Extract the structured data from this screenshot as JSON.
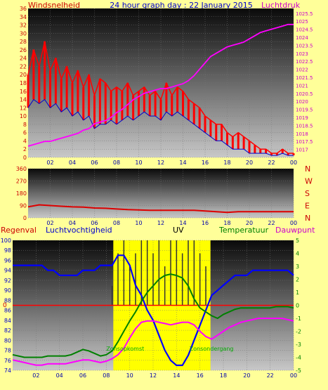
{
  "header": {
    "left_label": "Windsnelheid",
    "title": "24 hour graph day : 22 January 2015",
    "right_label": "Luchtdruk"
  },
  "colors": {
    "background": "#ffff99",
    "wind_gust": "#ff0000",
    "wind_avg": "#0000cc",
    "pressure": "#ff00ff",
    "humidity": "#0000ff",
    "temperature": "#008000",
    "dewpoint": "#ff00ff",
    "uv": "#ffff00",
    "direction": "#dd0000",
    "temp_zero_line": "#ff0000"
  },
  "chart_data": [
    {
      "type": "line",
      "x": [
        0,
        0.5,
        1,
        1.5,
        2,
        2.5,
        3,
        3.5,
        4,
        4.5,
        5,
        5.5,
        6,
        6.5,
        7,
        7.5,
        8,
        8.5,
        9,
        9.5,
        10,
        10.5,
        11,
        11.5,
        12,
        12.5,
        13,
        13.5,
        14,
        14.5,
        15,
        15.5,
        16,
        16.5,
        17,
        17.5,
        18,
        18.5,
        19,
        19.5,
        20,
        20.5,
        21,
        21.5,
        22,
        22.5,
        23,
        23.5,
        24
      ],
      "x_tick_labels": [
        "02",
        "04",
        "06",
        "08",
        "10",
        "12",
        "14",
        "16",
        "18",
        "20",
        "22",
        "00"
      ],
      "xlim": [
        0,
        24
      ],
      "y_left_ticks": [
        "0",
        "2",
        "4",
        "6",
        "8",
        "10",
        "12",
        "14",
        "16",
        "18",
        "20",
        "22",
        "24",
        "26",
        "28",
        "30",
        "32",
        "34",
        "36"
      ],
      "ylim_left": [
        0,
        36
      ],
      "y_right_ticks": [
        "1017",
        "1017.5",
        "1018",
        "1018.5",
        "1019",
        "1019.5",
        "1020",
        "1020.5",
        "1021",
        "1021.5",
        "1022",
        "1022.5",
        "1023",
        "1023.5",
        "1024",
        "1024.5",
        "1025",
        "1025.5"
      ],
      "ylim_right": [
        1016.5,
        1025.8
      ],
      "series": [
        {
          "name": "Windsnelheid",
          "role": "gust",
          "values": [
            20,
            26,
            22,
            28,
            21,
            24,
            19,
            22,
            18,
            21,
            17,
            20,
            15,
            19,
            18,
            16,
            17,
            16,
            18,
            15,
            16,
            17,
            15,
            16,
            14,
            18,
            15,
            17,
            16,
            14,
            13,
            12,
            10,
            9,
            8,
            8,
            6,
            5,
            6,
            5,
            4,
            3,
            2,
            2,
            1,
            1,
            2,
            1,
            1
          ]
        },
        {
          "name": "Windsnelheid",
          "role": "average",
          "values": [
            12,
            14,
            13,
            14,
            12,
            13,
            11,
            12,
            10,
            11,
            9,
            10,
            7,
            8,
            8,
            9,
            8,
            9,
            10,
            9,
            10,
            11,
            10,
            10,
            9,
            11,
            10,
            11,
            10,
            9,
            8,
            7,
            6,
            5,
            4,
            4,
            3,
            2,
            2,
            2,
            1,
            1,
            1,
            1,
            0.5,
            0.5,
            1,
            0.5,
            0.5
          ]
        },
        {
          "name": "Luchtdruk",
          "values": [
            1017.2,
            1017.3,
            1017.4,
            1017.5,
            1017.5,
            1017.6,
            1017.7,
            1017.8,
            1017.9,
            1018,
            1018.2,
            1018.3,
            1018.6,
            1018.7,
            1018.8,
            1019,
            1019.3,
            1019.5,
            1019.8,
            1020.1,
            1020.3,
            1020.5,
            1020.6,
            1020.7,
            1020.8,
            1020.8,
            1020.9,
            1021,
            1021.1,
            1021.3,
            1021.6,
            1022,
            1022.4,
            1022.8,
            1023,
            1023.2,
            1023.4,
            1023.5,
            1023.6,
            1023.7,
            1023.9,
            1024.1,
            1024.3,
            1024.4,
            1024.5,
            1024.6,
            1024.7,
            1024.8,
            1024.8
          ]
        }
      ]
    },
    {
      "type": "line",
      "x": [
        0,
        1,
        2,
        3,
        4,
        5,
        6,
        7,
        8,
        9,
        10,
        11,
        12,
        13,
        14,
        15,
        16,
        17,
        18,
        19,
        20,
        21,
        22,
        23,
        24
      ],
      "x_tick_labels": [
        "02",
        "04",
        "06",
        "08",
        "10",
        "12",
        "14",
        "16",
        "18",
        "20",
        "22",
        "00"
      ],
      "xlim": [
        0,
        24
      ],
      "y_ticks": [
        "0",
        "90",
        "180",
        "270",
        "360"
      ],
      "ylim": [
        0,
        360
      ],
      "direction_labels": [
        "N",
        "W",
        "S",
        "E",
        "N"
      ],
      "series": [
        {
          "name": "Windrichting",
          "values": [
            80,
            95,
            90,
            85,
            80,
            78,
            72,
            70,
            65,
            60,
            58,
            55,
            55,
            55,
            55,
            55,
            50,
            45,
            40,
            45,
            45,
            45,
            45,
            45,
            45
          ]
        }
      ]
    },
    {
      "type": "line",
      "header_labels": {
        "regen": "Regenval",
        "humidity": "Luchtvochtigheid",
        "uv": "UV",
        "temperature": "Temperatuur",
        "dewpoint": "Dauwpunt"
      },
      "x_tick_labels": [
        "02",
        "04",
        "06",
        "08",
        "10",
        "12",
        "14",
        "16",
        "18",
        "20",
        "22",
        "00"
      ],
      "xlim": [
        0,
        24
      ],
      "y_left_ticks": [
        "74",
        "76",
        "78",
        "80",
        "82",
        "84",
        "86",
        "88",
        "90",
        "92",
        "94",
        "96",
        "98",
        "100"
      ],
      "ylim_left": [
        74,
        100
      ],
      "y_right_ticks": [
        "-5",
        "-4",
        "-3",
        "-2",
        "-1",
        "0",
        "1",
        "2",
        "3",
        "4",
        "5"
      ],
      "ylim_right": [
        -5,
        5
      ],
      "regen_zero_label": "0",
      "annotations": {
        "sunrise": "Zonsopkomst",
        "sunset": "Zonsondergang"
      },
      "sun_period": [
        8.6,
        16.9
      ],
      "x": [
        0,
        0.5,
        1,
        1.5,
        2,
        2.5,
        3,
        3.5,
        4,
        4.5,
        5,
        5.5,
        6,
        6.5,
        7,
        7.5,
        8,
        8.5,
        9,
        9.5,
        10,
        10.5,
        11,
        11.5,
        12,
        12.5,
        13,
        13.5,
        14,
        14.5,
        15,
        15.5,
        16,
        16.5,
        17,
        17.5,
        18,
        18.5,
        19,
        19.5,
        20,
        20.5,
        21,
        21.5,
        22,
        22.5,
        23,
        23.5,
        24
      ],
      "series": [
        {
          "name": "Luchtvochtigheid",
          "axis": "left",
          "values": [
            95,
            95,
            95,
            95,
            95,
            95,
            94,
            94,
            93,
            93,
            93,
            93,
            94,
            94,
            94,
            95,
            95,
            95,
            97,
            97,
            95,
            91,
            89,
            86,
            84,
            81,
            78,
            76,
            75,
            75,
            77,
            80,
            83,
            86,
            89,
            90,
            91,
            92,
            93,
            93,
            93,
            94,
            94,
            94,
            94,
            94,
            94,
            94,
            93
          ]
        },
        {
          "name": "Temperatuur",
          "axis": "right",
          "values": [
            -3.8,
            -3.9,
            -4,
            -4,
            -4,
            -4,
            -3.9,
            -3.9,
            -3.9,
            -3.9,
            -3.8,
            -3.6,
            -3.4,
            -3.5,
            -3.7,
            -3.9,
            -3.8,
            -3.5,
            -2.8,
            -2,
            -1.2,
            -0.5,
            0.3,
            1,
            1.5,
            2,
            2.3,
            2.4,
            2.3,
            2.1,
            1.5,
            0.5,
            -0.2,
            -0.5,
            -0.8,
            -1,
            -0.7,
            -0.5,
            -0.3,
            -0.2,
            -0.2,
            -0.2,
            -0.2,
            -0.2,
            -0.2,
            -0.1,
            -0.1,
            -0.1,
            -0.2
          ]
        },
        {
          "name": "Dauwpunt",
          "axis": "right",
          "values": [
            -4.2,
            -4.3,
            -4.4,
            -4.5,
            -4.6,
            -4.6,
            -4.5,
            -4.5,
            -4.5,
            -4.5,
            -4.4,
            -4.3,
            -4.2,
            -4.2,
            -4.3,
            -4.4,
            -4.3,
            -4.1,
            -3.8,
            -3.3,
            -2.5,
            -1.8,
            -1.3,
            -1.2,
            -1.2,
            -1.3,
            -1.4,
            -1.5,
            -1.4,
            -1.3,
            -1.3,
            -1.5,
            -2,
            -2.4,
            -2.6,
            -2.3,
            -2,
            -1.7,
            -1.5,
            -1.3,
            -1.2,
            -1.1,
            -1,
            -1,
            -1,
            -1,
            -1,
            -1.1,
            -1.2
          ]
        },
        {
          "name": "UV",
          "axis": "right",
          "values": [
            null,
            null,
            null,
            null,
            null,
            null,
            null,
            null,
            null,
            null,
            null,
            null,
            null,
            null,
            null,
            null,
            null,
            1.5,
            4,
            5,
            3,
            4,
            5,
            5,
            4,
            5,
            3,
            5,
            5,
            4,
            5,
            5,
            4,
            3,
            null,
            null,
            null,
            null,
            null,
            null,
            null,
            null,
            null,
            null,
            null,
            null,
            null,
            null,
            null
          ]
        },
        {
          "name": "Regenval",
          "axis": "regen",
          "values": [
            0,
            0,
            0,
            0,
            0,
            0,
            0,
            0,
            0,
            0,
            0,
            0,
            0,
            0,
            0,
            0,
            0,
            0,
            0,
            0,
            0,
            0,
            0,
            0,
            0,
            0,
            0,
            0,
            0,
            0,
            0,
            0,
            0,
            0,
            0,
            0,
            0,
            0,
            0,
            0,
            0,
            0,
            0,
            0,
            0,
            0,
            0,
            0,
            0
          ]
        }
      ]
    }
  ]
}
